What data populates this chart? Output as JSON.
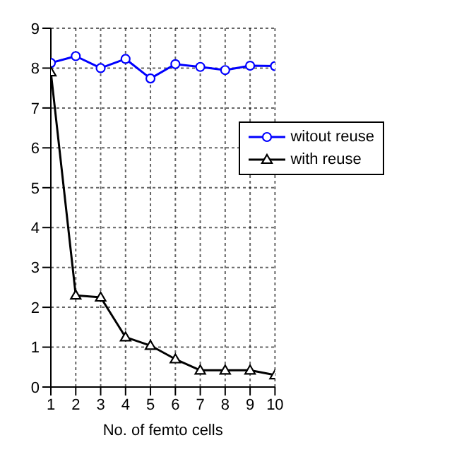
{
  "chart_data": {
    "type": "line",
    "xlabel": "No. of femto cells",
    "x": [
      1,
      2,
      3,
      4,
      5,
      6,
      7,
      8,
      9,
      10
    ],
    "series": [
      {
        "name": "witout reuse",
        "color": "#0000ff",
        "marker": "circle",
        "values": [
          8.13,
          8.3,
          8.0,
          8.23,
          7.74,
          8.1,
          8.03,
          7.95,
          8.06,
          8.05
        ]
      },
      {
        "name": "with reuse",
        "color": "#000000",
        "marker": "triangle",
        "values": [
          7.9,
          2.3,
          2.25,
          1.25,
          1.04,
          0.7,
          0.42,
          0.42,
          0.42,
          0.3
        ]
      }
    ],
    "xlim": [
      1,
      10
    ],
    "xticks": [
      1,
      2,
      3,
      4,
      5,
      6,
      7,
      8,
      9,
      10
    ],
    "ylim": [
      0,
      9
    ],
    "yticks": [
      0,
      1,
      2,
      3,
      4,
      5,
      6,
      7,
      8,
      9
    ],
    "grid": true,
    "legend": "top right",
    "line_style": "solid"
  }
}
